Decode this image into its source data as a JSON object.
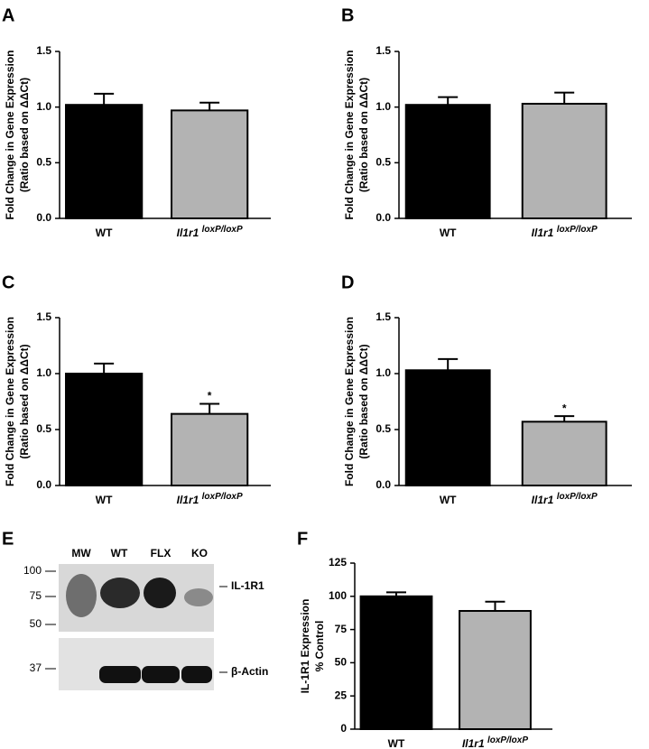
{
  "chart_data": [
    {
      "type": "bar",
      "panel": "A",
      "ylabel": [
        "Fold Change in Gene Expression",
        "(Ratio based on ΔΔCt)"
      ],
      "categories": [
        "WT",
        "Il1r1 loxP/loxP"
      ],
      "values": [
        1.02,
        0.97
      ],
      "errors": [
        0.1,
        0.07
      ],
      "colors": [
        "#000000",
        "#b3b3b3"
      ],
      "ylim": [
        0,
        1.5
      ],
      "yticks": [
        {
          "value": 0,
          "label": "0.0"
        },
        {
          "value": 0.5,
          "label": "0.5"
        },
        {
          "value": 1,
          "label": "1.0"
        },
        {
          "value": 1.5,
          "label": "1.5"
        }
      ]
    },
    {
      "type": "bar",
      "panel": "B",
      "ylabel": [
        "Fold Change in Gene Expression",
        "(Ratio based on ΔΔCt)"
      ],
      "categories": [
        "WT",
        "Il1r1 loxP/loxP"
      ],
      "values": [
        1.02,
        1.03
      ],
      "errors": [
        0.07,
        0.1
      ],
      "colors": [
        "#000000",
        "#b3b3b3"
      ],
      "ylim": [
        0,
        1.5
      ],
      "yticks": [
        {
          "value": 0,
          "label": "0.0"
        },
        {
          "value": 0.5,
          "label": "0.5"
        },
        {
          "value": 1,
          "label": "1.0"
        },
        {
          "value": 1.5,
          "label": "1.5"
        }
      ]
    },
    {
      "type": "bar",
      "panel": "C",
      "ylabel": [
        "Fold Change in Gene Expression",
        "(Ratio based on ΔΔCt)"
      ],
      "categories": [
        "WT",
        "Il1r1 loxP/loxP"
      ],
      "values": [
        1.0,
        0.64
      ],
      "errors": [
        0.09,
        0.09
      ],
      "significance": [
        null,
        "*"
      ],
      "colors": [
        "#000000",
        "#b3b3b3"
      ],
      "ylim": [
        0,
        1.5
      ],
      "yticks": [
        {
          "value": 0,
          "label": "0.0"
        },
        {
          "value": 0.5,
          "label": "0.5"
        },
        {
          "value": 1,
          "label": "1.0"
        },
        {
          "value": 1.5,
          "label": "1.5"
        }
      ]
    },
    {
      "type": "bar",
      "panel": "D",
      "ylabel": [
        "Fold Change in Gene Expression",
        "(Ratio based on ΔΔCt)"
      ],
      "categories": [
        "WT",
        "Il1r1 loxP/loxP"
      ],
      "values": [
        1.03,
        0.57
      ],
      "errors": [
        0.1,
        0.05
      ],
      "significance": [
        null,
        "*"
      ],
      "colors": [
        "#000000",
        "#b3b3b3"
      ],
      "ylim": [
        0,
        1.5
      ],
      "yticks": [
        {
          "value": 0,
          "label": "0.0"
        },
        {
          "value": 0.5,
          "label": "0.5"
        },
        {
          "value": 1,
          "label": "1.0"
        },
        {
          "value": 1.5,
          "label": "1.5"
        }
      ]
    },
    {
      "type": "bar",
      "panel": "F",
      "ylabel": [
        "IL-1R1 Expression",
        "% Control"
      ],
      "categories": [
        "WT",
        "Il1r1 loxP/loxP"
      ],
      "values": [
        100,
        89
      ],
      "errors": [
        3,
        7
      ],
      "colors": [
        "#000000",
        "#b3b3b3"
      ],
      "ylim": [
        0,
        125
      ],
      "yticks": [
        0,
        25,
        50,
        75,
        100,
        125
      ]
    }
  ],
  "blot": {
    "panel": "E",
    "lanes": [
      "MW",
      "WT",
      "FLX",
      "KO"
    ],
    "markers": [
      "100",
      "75",
      "50",
      "37"
    ],
    "bands": [
      "IL-1R1",
      "β-Actin"
    ]
  }
}
